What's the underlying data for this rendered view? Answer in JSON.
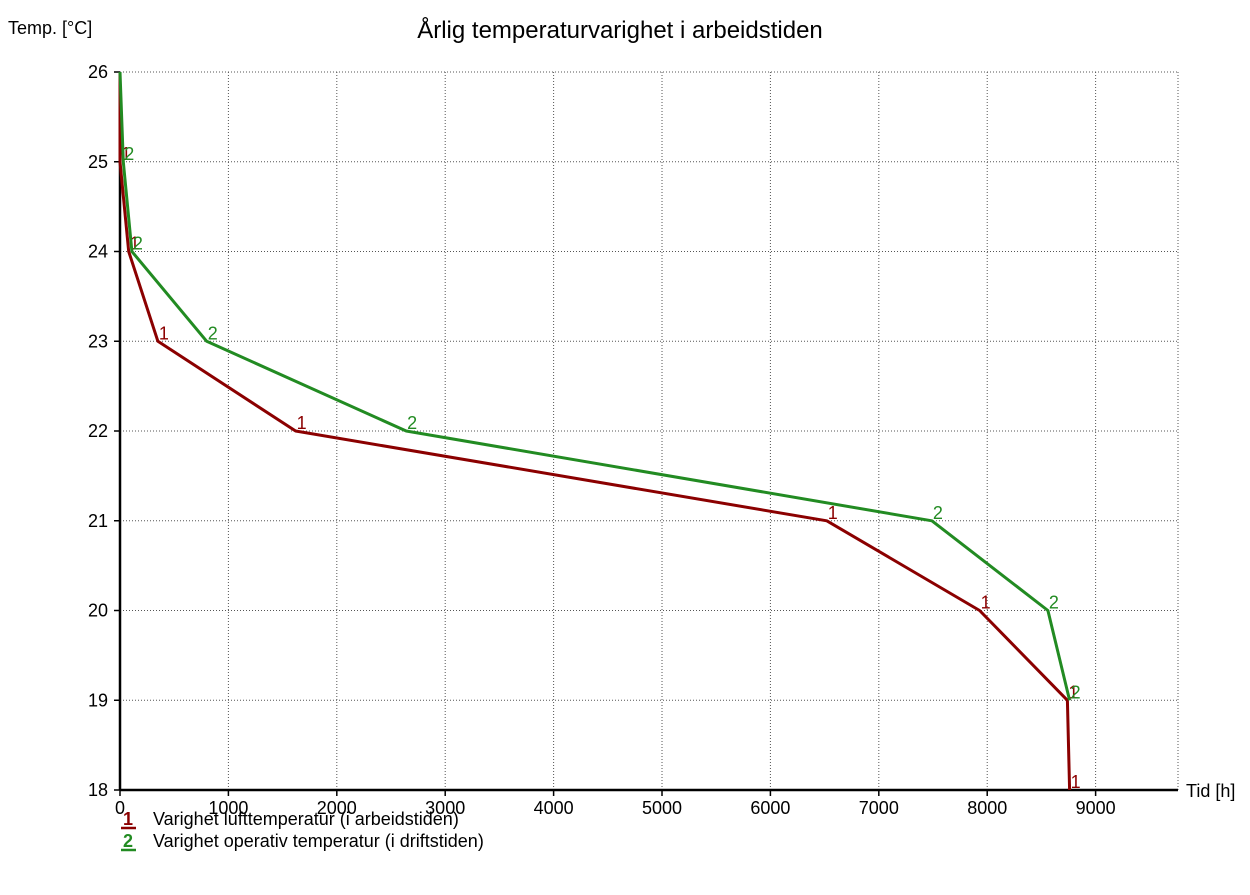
{
  "chart_data": {
    "type": "line",
    "title": "Årlig temperaturvarighet i arbeidstiden",
    "xlabel": "Tid [h]",
    "ylabel": "Temp. [°C]",
    "xlim": [
      0,
      9760
    ],
    "ylim": [
      18,
      26
    ],
    "xticks": [
      0,
      1000,
      2000,
      3000,
      4000,
      5000,
      6000,
      7000,
      8000,
      9000
    ],
    "yticks": [
      18,
      19,
      20,
      21,
      22,
      23,
      24,
      25,
      26
    ],
    "grid": true,
    "legend_position": "bottom-left",
    "series": [
      {
        "name": "Varighet lufttemperatur (i arbeidstiden)",
        "marker": "1",
        "color": "#8b0000",
        "x": [
          0,
          0,
          80,
          350,
          1620,
          6520,
          7930,
          8740,
          8760
        ],
        "y": [
          26,
          25,
          24,
          23,
          22,
          21,
          20,
          19,
          18
        ]
      },
      {
        "name": "Varighet operativ temperatur (i driftstiden)",
        "marker": "2",
        "color": "#228b22",
        "x": [
          0,
          30,
          110,
          800,
          2640,
          7490,
          8560,
          8760
        ],
        "y": [
          26,
          25,
          24,
          23,
          22,
          21,
          20,
          19
        ]
      }
    ]
  }
}
